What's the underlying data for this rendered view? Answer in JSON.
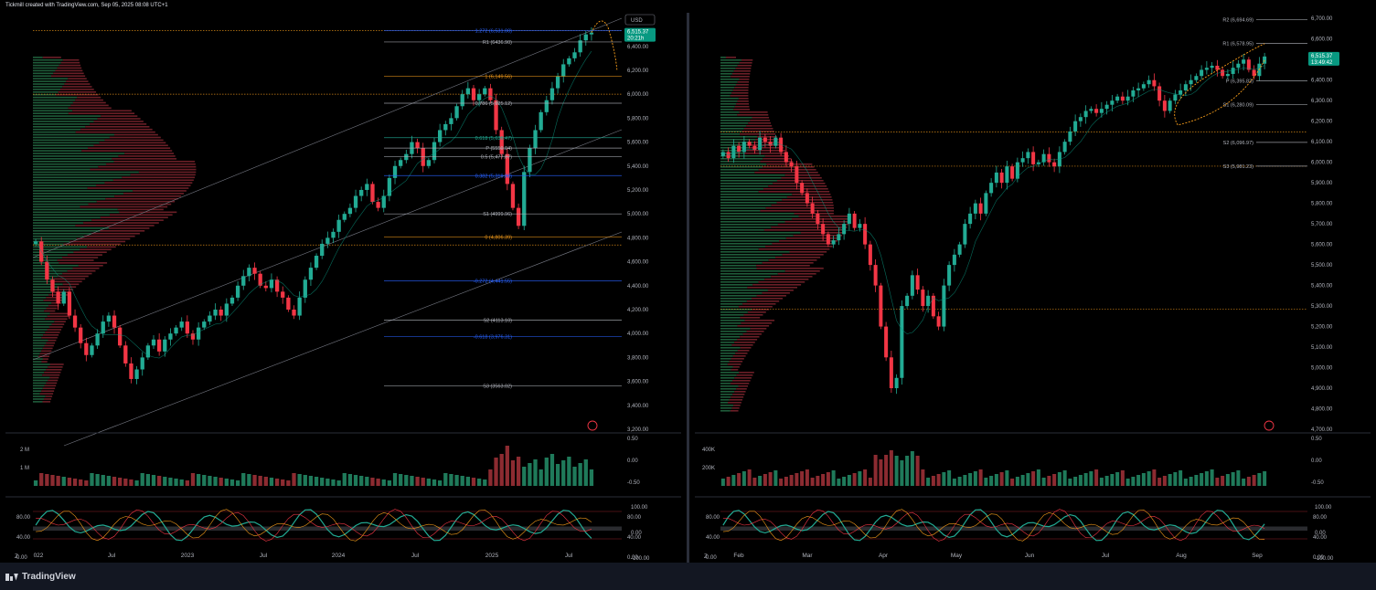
{
  "header": {
    "caption": "Tickmill created with TradingView.com, Sep 05, 2025 08:08 UTC+1"
  },
  "footer": {
    "brand": "TradingView"
  },
  "colors": {
    "up": "#22ab94",
    "down": "#f23645",
    "bg": "#000000",
    "pivot_orange": "#f59c1a",
    "fib_blue": "#2962ff",
    "grid": "#1e222d",
    "volume_up": "#1f7a5a",
    "volume_down": "#8c2b31"
  },
  "chart_data": [
    {
      "type": "candlestick",
      "title": "",
      "currency": "USD",
      "timeframe": "weekly",
      "price_axis": {
        "ticks": [
          "6,600.00",
          "6,400.00",
          "6,200.00",
          "6,000.00",
          "5,800.00",
          "5,600.00",
          "5,400.00",
          "5,200.00",
          "5,000.00",
          "4,800.00",
          "4,600.00",
          "4,400.00",
          "4,200.00",
          "4,000.00",
          "3,800.00",
          "3,600.00",
          "3,400.00",
          "3,200.00"
        ],
        "ylim": [
          3200,
          6650
        ]
      },
      "time_axis": [
        "022",
        "Jul",
        "2023",
        "Jul",
        "2024",
        "Jul",
        "2025",
        "Jul"
      ],
      "last_price": "6,515.37",
      "countdown": "20:21h",
      "levels": [
        {
          "label": "1.272 (6,531.00)",
          "value": 6531,
          "color": "#2962ff"
        },
        {
          "label": "R1 (6436.90)",
          "value": 6436.9,
          "color": "#b2b5be"
        },
        {
          "label": "1 (6,149.56)",
          "value": 6149.56,
          "color": "#f59c1a"
        },
        {
          "label": "0.786 (5,925.12)",
          "value": 5925.12,
          "color": "#b2b5be"
        },
        {
          "label": "0.618 (5,636.47)",
          "value": 5636.47,
          "color": "#22ab94"
        },
        {
          "label": "P (5550.04)",
          "value": 5550.04,
          "color": "#b2b5be"
        },
        {
          "label": "0.5 (5,477.87)",
          "value": 5477.87,
          "color": "#b2b5be"
        },
        {
          "label": "0.382 (5,319.88)",
          "value": 5319.88,
          "color": "#2962ff"
        },
        {
          "label": "S1 (4999.96)",
          "value": 4999.96,
          "color": "#b2b5be"
        },
        {
          "label": "0 (4,806.39)",
          "value": 4806.39,
          "color": "#f59c1a"
        },
        {
          "label": "-0.272 (4,441.55)",
          "value": 4441.55,
          "color": "#2962ff"
        },
        {
          "label": "S2 (4113.10)",
          "value": 4113.1,
          "color": "#b2b5be"
        },
        {
          "label": "-0.618 (3,976.31)",
          "value": 3976.31,
          "color": "#2962ff"
        },
        {
          "label": "S3 (3563.02)",
          "value": 3563.02,
          "color": "#b2b5be"
        }
      ],
      "dotted_levels": [
        6531,
        6000,
        4740
      ],
      "volume_axis": [
        "2 M",
        "1 M"
      ],
      "osc_left_axis": [
        "0.50",
        "0.00",
        "-0.50"
      ],
      "rsi_left_axis": [
        "80.00",
        "40.00",
        "0.00"
      ],
      "rsi_right_axis": [
        "100.00",
        "0.00",
        "-100.00"
      ],
      "rsi_mid_axis": [
        "80.00",
        "40.00",
        "0.00"
      ],
      "closes": [
        4770,
        4600,
        4450,
        4350,
        4250,
        4350,
        4150,
        4050,
        3920,
        3820,
        3900,
        4000,
        4100,
        4150,
        4050,
        3900,
        3750,
        3620,
        3700,
        3800,
        3900,
        3950,
        3850,
        3950,
        4000,
        4050,
        4100,
        4000,
        3950,
        4050,
        4100,
        4150,
        4200,
        4150,
        4250,
        4300,
        4400,
        4480,
        4550,
        4500,
        4400,
        4380,
        4450,
        4350,
        4300,
        4200,
        4150,
        4300,
        4450,
        4550,
        4650,
        4750,
        4800,
        4850,
        4950,
        5000,
        5050,
        5150,
        5200,
        5250,
        5100,
        5050,
        5150,
        5300,
        5400,
        5450,
        5500,
        5600,
        5550,
        5400,
        5450,
        5600,
        5700,
        5750,
        5800,
        5900,
        6000,
        6050,
        5950,
        6000,
        6050,
        5950,
        5700,
        5500,
        5250,
        5050,
        4900,
        5350,
        5550,
        5700,
        5850,
        5950,
        6050,
        6150,
        6250,
        6300,
        6350,
        6450,
        6500,
        6515
      ]
    },
    {
      "type": "candlestick",
      "title": "",
      "currency": "USD",
      "timeframe": "daily",
      "price_axis": {
        "ticks": [
          "6,700.00",
          "6,600.00",
          "6,500.00",
          "6,400.00",
          "6,300.00",
          "6,200.00",
          "6,100.00",
          "6,000.00",
          "5,900.00",
          "5,800.00",
          "5,700.00",
          "5,600.00",
          "5,500.00",
          "5,400.00",
          "5,300.00",
          "5,200.00",
          "5,100.00",
          "5,000.00",
          "4,900.00",
          "4,800.00",
          "4,700.00"
        ],
        "ylim": [
          4700,
          6710
        ]
      },
      "time_axis": [
        "Feb",
        "Mar",
        "Apr",
        "May",
        "Jun",
        "Jul",
        "Aug",
        "Sep"
      ],
      "last_price": "6,515.37",
      "countdown": "13:49:42",
      "levels": [
        {
          "label": "R2 (6,694.69)",
          "value": 6694.69,
          "color": "#b2b5be"
        },
        {
          "label": "R1 (6,578.95)",
          "value": 6578.95,
          "color": "#b2b5be"
        },
        {
          "label": "P (6,395.83)",
          "value": 6395.83,
          "color": "#b2b5be"
        },
        {
          "label": "S1 (6,280.09)",
          "value": 6280.09,
          "color": "#b2b5be"
        },
        {
          "label": "S2 (6,096.97)",
          "value": 6096.97,
          "color": "#b2b5be"
        },
        {
          "label": "S3 (5,981.23)",
          "value": 5981.23,
          "color": "#b2b5be"
        }
      ],
      "dotted_levels": [
        6148,
        5981,
        5285
      ],
      "volume_axis": [
        "400K",
        "200K"
      ],
      "osc_left_axis": [
        "0.50",
        "0.00",
        "-0.50"
      ],
      "rsi_left_axis": [
        "80.00",
        "40.00",
        "0.00"
      ],
      "rsi_right_axis": [
        "100.00",
        "0.00",
        "-100.00"
      ],
      "rsi_mid_axis": [
        "80.00",
        "40.00",
        "0.00"
      ],
      "closes": [
        6050,
        6020,
        6080,
        6050,
        6100,
        6080,
        6060,
        6120,
        6100,
        6080,
        6120,
        6050,
        6000,
        5980,
        5900,
        5850,
        5800,
        5750,
        5700,
        5650,
        5600,
        5620,
        5650,
        5700,
        5750,
        5680,
        5700,
        5600,
        5500,
        5400,
        5200,
        5050,
        4900,
        4950,
        5300,
        5350,
        5450,
        5380,
        5300,
        5350,
        5250,
        5200,
        5400,
        5500,
        5550,
        5600,
        5700,
        5750,
        5800,
        5750,
        5850,
        5900,
        5950,
        5900,
        5980,
        5920,
        6000,
        6020,
        6050,
        5990,
        6000,
        6040,
        6000,
        5980,
        6050,
        6100,
        6150,
        6200,
        6220,
        6250,
        6260,
        6240,
        6260,
        6280,
        6300,
        6320,
        6300,
        6320,
        6350,
        6360,
        6380,
        6400,
        6370,
        6300,
        6250,
        6300,
        6330,
        6350,
        6380,
        6400,
        6420,
        6450,
        6460,
        6470,
        6450,
        6420,
        6430,
        6460,
        6480,
        6500,
        6450,
        6420,
        6480,
        6515
      ]
    }
  ]
}
